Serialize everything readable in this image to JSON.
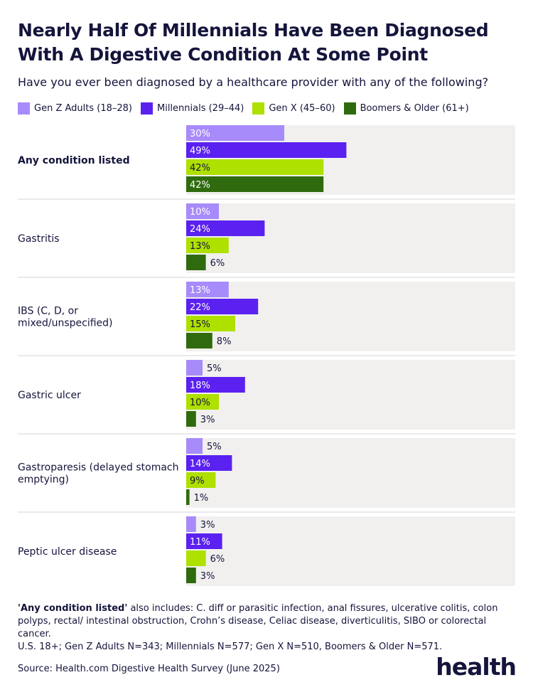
{
  "title": "Nearly Half Of Millennials Have Been Diagnosed With A Digestive Condition At Some Point",
  "subtitle": "Have you ever been diagnosed by a healthcare provider with any of the following?",
  "footnote": {
    "bold": "'Any condition listed'",
    "text": " also includes: C. diff or parasitic infection, anal fissures, ulcerative colitis, colon polyps, rectal/ intestinal obstruction, Crohn’s disease, Celiac disease, diverticulitis, SIBO or colorectal cancer.",
    "sample": "U.S. 18+; Gen Z Adults N=343; Millennials N=577; Gen X N=510, Boomers & Older N=571."
  },
  "source": "Source: Health.com Digestive Health Survey (June 2025)",
  "logo": "health",
  "colors": {
    "genz": "#a78bfa",
    "millennials": "#5b21f0",
    "genx": "#aee000",
    "boomers": "#2f6b0e",
    "panel": "#f1f0ee",
    "divider": "#d6d6d6"
  },
  "chart_data": {
    "type": "bar",
    "orientation": "horizontal",
    "categories": [
      "Any condition listed",
      "Gastritis",
      "IBS (C, D, or mixed/unspecified)",
      "Gastric ulcer",
      "Gastroparesis (delayed stomach emptying)",
      "Peptic ulcer disease"
    ],
    "series": [
      {
        "name": "Gen Z Adults (18–28)",
        "values": [
          30,
          10,
          13,
          5,
          5,
          3
        ],
        "color": "#a78bfa"
      },
      {
        "name": "Millennials (29–44)",
        "values": [
          49,
          24,
          22,
          18,
          14,
          11
        ],
        "color": "#5b21f0"
      },
      {
        "name": "Gen X (45–60)",
        "values": [
          42,
          13,
          15,
          10,
          9,
          6
        ],
        "color": "#aee000"
      },
      {
        "name": "Boomers & Older (61+)",
        "values": [
          42,
          6,
          8,
          3,
          1,
          3
        ],
        "color": "#2f6b0e"
      }
    ],
    "value_suffix": "%",
    "xlim": [
      0,
      100
    ],
    "grid": false,
    "legend_position": "top"
  }
}
